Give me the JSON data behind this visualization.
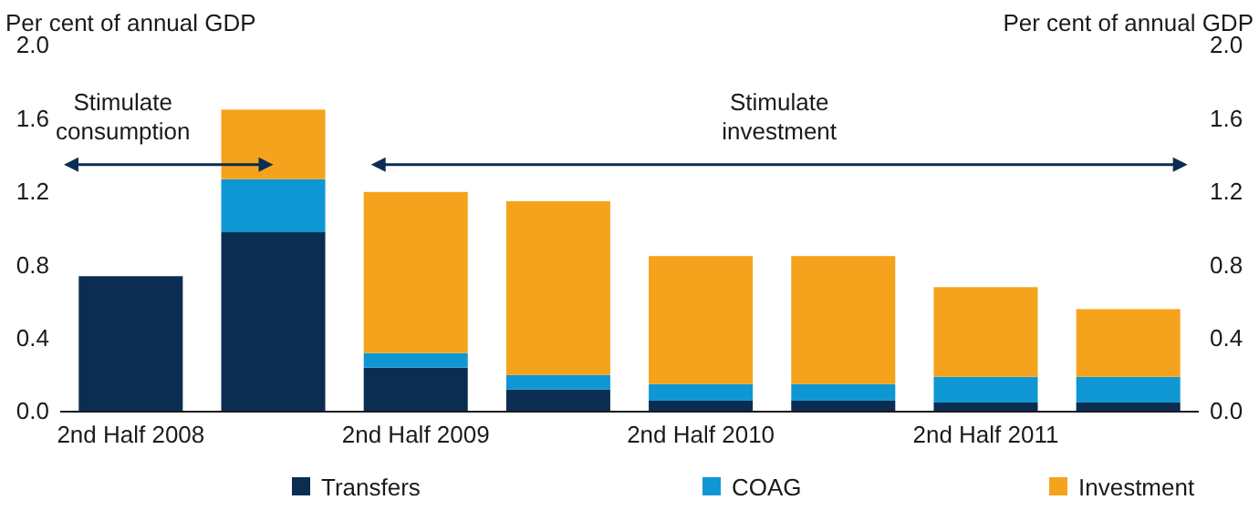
{
  "chart_data": {
    "type": "bar",
    "stacked": true,
    "ylabel": "Per cent of annual GDP",
    "y2label": "Per cent of annual GDP",
    "categories": [
      "2nd Half 2008",
      null,
      "2nd Half 2009",
      null,
      "2nd Half 2010",
      null,
      "2nd Half 2011",
      null
    ],
    "series": [
      {
        "name": "Transfers",
        "color": "#0b2d51",
        "values": [
          0.74,
          0.98,
          0.24,
          0.12,
          0.06,
          0.06,
          0.05,
          0.05
        ]
      },
      {
        "name": "COAG",
        "color": "#0f97d3",
        "values": [
          0,
          0.29,
          0.08,
          0.08,
          0.09,
          0.09,
          0.14,
          0.14
        ]
      },
      {
        "name": "Investment",
        "color": "#f5a31c",
        "values": [
          0,
          0.38,
          0.88,
          0.95,
          0.7,
          0.7,
          0.49,
          0.37
        ]
      }
    ],
    "ylim": [
      0,
      2
    ],
    "yticks": [
      {
        "value": 0,
        "label": "0.0"
      },
      {
        "value": 0.4,
        "label": "0.4"
      },
      {
        "value": 0.8,
        "label": "0.8"
      },
      {
        "value": 1.2,
        "label": "1.2"
      },
      {
        "value": 1.6,
        "label": "1.6"
      },
      {
        "value": 2,
        "label": "2.0"
      }
    ],
    "y2lim": [
      0,
      2
    ],
    "y2ticks": [
      {
        "value": 0,
        "label": "0.0"
      },
      {
        "value": 0.4,
        "label": "0.4"
      },
      {
        "value": 0.8,
        "label": "0.8"
      },
      {
        "value": 1.2,
        "label": "1.2"
      },
      {
        "value": 1.6,
        "label": "1.6"
      },
      {
        "value": 2,
        "label": "2.0"
      }
    ],
    "annotations": [
      "Stimulate consumption",
      "Stimulate investment"
    ],
    "legend": "bottom",
    "grid": false
  }
}
